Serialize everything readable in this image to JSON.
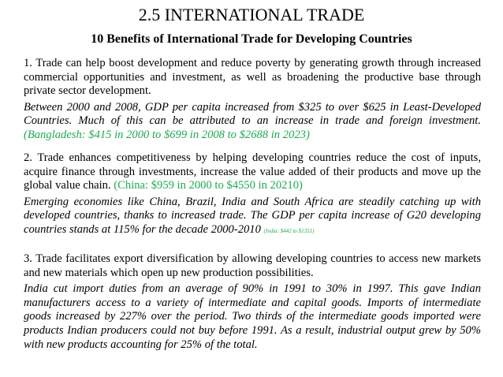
{
  "title": "2.5 INTERNATIONAL TRADE",
  "subtitle": "10 Benefits of International Trade for Developing Countries",
  "sections": [
    {
      "text": "1. Trade can help boost development and reduce poverty by generating growth through increased commercial opportunities and investment, as well as broadening the productive base through private sector development.",
      "example": "Between 2000 and 2008, GDP per capita increased from $325 to over $625 in Least-Developed Countries. Much of this can be attributed to an increase in trade and foreign investment.",
      "example_note": "(Bangladesh: $415 in 2000 to $699 in 2008 to $2688 in 2023)"
    },
    {
      "text": "2. Trade enhances competitiveness by helping developing countries reduce the cost of inputs, acquire finance through investments, increase the value added of their products and move up the global value chain.",
      "text_note": "(China: $959 in 2000 to $4550 in 20210)",
      "example": "Emerging economies like China, Brazil, India and South Africa are steadily catching up with developed countries, thanks to increased trade. The GDP per capita increase of G20 developing countries stands at 115% for the decade 2000-2010",
      "example_note": "(India: $442 to $1351)"
    },
    {
      "text": "3. Trade facilitates export diversification by allowing developing countries to access new markets and new materials which open up new production possibilities.",
      "example": "India cut import duties from an average of 90% in 1991 to 30% in 1997. This gave Indian manufacturers access to a variety of intermediate and capital goods. Imports of intermediate goods increased by 227% over the period. Two thirds of the intermediate goods imported were products Indian producers could not buy before 1991. As a result, industrial output grew by 50% with new products accounting for 25% of the total."
    }
  ],
  "colors": {
    "accent_green": "#1faa4f"
  }
}
